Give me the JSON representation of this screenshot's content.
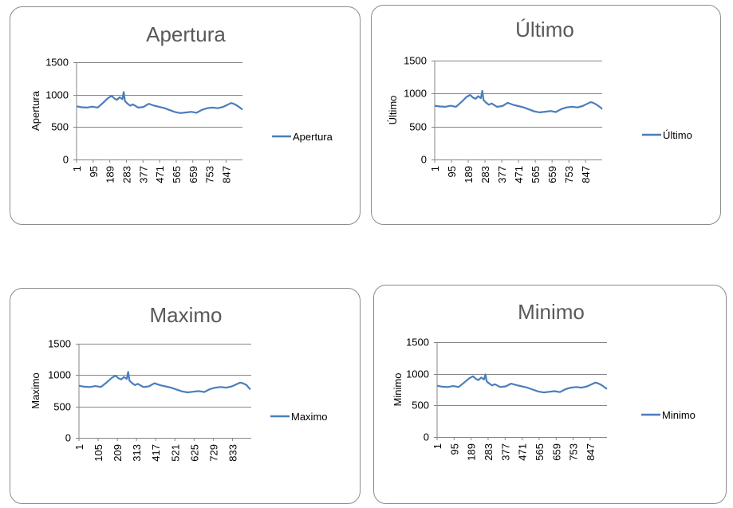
{
  "colors": {
    "series": "#4a7ebb",
    "axis": "#868686",
    "text": "#000000",
    "title": "#595959"
  },
  "chart_data": [
    {
      "type": "line",
      "title": "Apertura",
      "ylabel": "Apertura",
      "xlabel": "",
      "legend": "right",
      "grid": false,
      "ylim": [
        0,
        1500
      ],
      "yticks": [
        0,
        500,
        1000,
        1500
      ],
      "xlim": [
        1,
        940
      ],
      "xticks": [
        "1",
        "95",
        "189",
        "283",
        "377",
        "471",
        "565",
        "659",
        "753",
        "847"
      ],
      "series": [
        {
          "name": "Apertura",
          "x": [
            1,
            30,
            60,
            90,
            120,
            150,
            180,
            200,
            215,
            230,
            245,
            260,
            268,
            275,
            290,
            305,
            320,
            350,
            380,
            410,
            440,
            470,
            500,
            530,
            560,
            590,
            620,
            650,
            680,
            710,
            740,
            770,
            800,
            830,
            860,
            875,
            890,
            910,
            930,
            940
          ],
          "y": [
            820,
            805,
            800,
            815,
            800,
            870,
            950,
            980,
            940,
            920,
            960,
            930,
            1040,
            900,
            860,
            830,
            850,
            800,
            810,
            860,
            830,
            810,
            790,
            760,
            730,
            715,
            725,
            735,
            720,
            765,
            790,
            800,
            790,
            810,
            850,
            870,
            860,
            830,
            790,
            770
          ]
        }
      ]
    },
    {
      "type": "line",
      "title": "Último",
      "ylabel": "Último",
      "xlabel": "",
      "legend": "right",
      "grid": false,
      "ylim": [
        0,
        1500
      ],
      "yticks": [
        0,
        500,
        1000,
        1500
      ],
      "xlim": [
        1,
        940
      ],
      "xticks": [
        "1",
        "95",
        "189",
        "283",
        "377",
        "471",
        "565",
        "659",
        "753",
        "847"
      ],
      "series": [
        {
          "name": "Último",
          "x": [
            1,
            30,
            60,
            90,
            120,
            150,
            180,
            200,
            215,
            230,
            245,
            260,
            268,
            275,
            290,
            305,
            320,
            350,
            380,
            410,
            440,
            470,
            500,
            530,
            560,
            590,
            620,
            650,
            680,
            710,
            740,
            770,
            800,
            830,
            860,
            875,
            890,
            910,
            930,
            940
          ],
          "y": [
            815,
            805,
            800,
            815,
            800,
            870,
            950,
            980,
            940,
            920,
            960,
            930,
            1040,
            900,
            860,
            830,
            850,
            800,
            810,
            860,
            830,
            810,
            790,
            760,
            730,
            715,
            725,
            735,
            720,
            765,
            790,
            800,
            790,
            810,
            850,
            870,
            860,
            830,
            790,
            765
          ]
        }
      ]
    },
    {
      "type": "line",
      "title": "Maximo",
      "ylabel": "Maximo",
      "xlabel": "",
      "legend": "right",
      "grid": false,
      "ylim": [
        0,
        1500
      ],
      "yticks": [
        0,
        500,
        1000,
        1500
      ],
      "xlim": [
        1,
        935
      ],
      "xticks": [
        "1",
        "105",
        "209",
        "313",
        "417",
        "521",
        "625",
        "729",
        "833"
      ],
      "series": [
        {
          "name": "Maximo",
          "x": [
            1,
            30,
            60,
            90,
            120,
            150,
            180,
            200,
            215,
            230,
            245,
            260,
            268,
            275,
            290,
            305,
            320,
            350,
            380,
            410,
            440,
            470,
            500,
            530,
            560,
            590,
            620,
            650,
            680,
            710,
            740,
            770,
            800,
            830,
            860,
            875,
            890,
            910,
            930
          ],
          "y": [
            830,
            815,
            810,
            825,
            810,
            880,
            960,
            990,
            950,
            930,
            970,
            940,
            1050,
            910,
            870,
            840,
            860,
            810,
            820,
            870,
            840,
            820,
            800,
            770,
            740,
            725,
            735,
            745,
            730,
            775,
            800,
            810,
            800,
            820,
            860,
            880,
            870,
            840,
            770
          ]
        }
      ]
    },
    {
      "type": "line",
      "title": "Minimo",
      "ylabel": "Minimo",
      "xlabel": "",
      "legend": "right",
      "grid": false,
      "ylim": [
        0,
        1500
      ],
      "yticks": [
        0,
        500,
        1000,
        1500
      ],
      "xlim": [
        1,
        940
      ],
      "xticks": [
        "1",
        "95",
        "189",
        "283",
        "377",
        "471",
        "565",
        "659",
        "753",
        "847"
      ],
      "series": [
        {
          "name": "Minimo",
          "x": [
            1,
            30,
            60,
            90,
            120,
            150,
            180,
            200,
            215,
            230,
            245,
            260,
            268,
            275,
            290,
            305,
            320,
            350,
            380,
            410,
            440,
            470,
            500,
            530,
            560,
            590,
            620,
            650,
            680,
            710,
            740,
            770,
            800,
            830,
            860,
            875,
            890,
            910,
            930,
            940
          ],
          "y": [
            810,
            795,
            790,
            805,
            790,
            860,
            930,
            960,
            920,
            900,
            940,
            910,
            990,
            880,
            845,
            815,
            835,
            790,
            800,
            845,
            820,
            800,
            780,
            750,
            720,
            705,
            715,
            725,
            710,
            755,
            780,
            790,
            780,
            800,
            840,
            860,
            850,
            820,
            780,
            760
          ]
        }
      ]
    }
  ]
}
